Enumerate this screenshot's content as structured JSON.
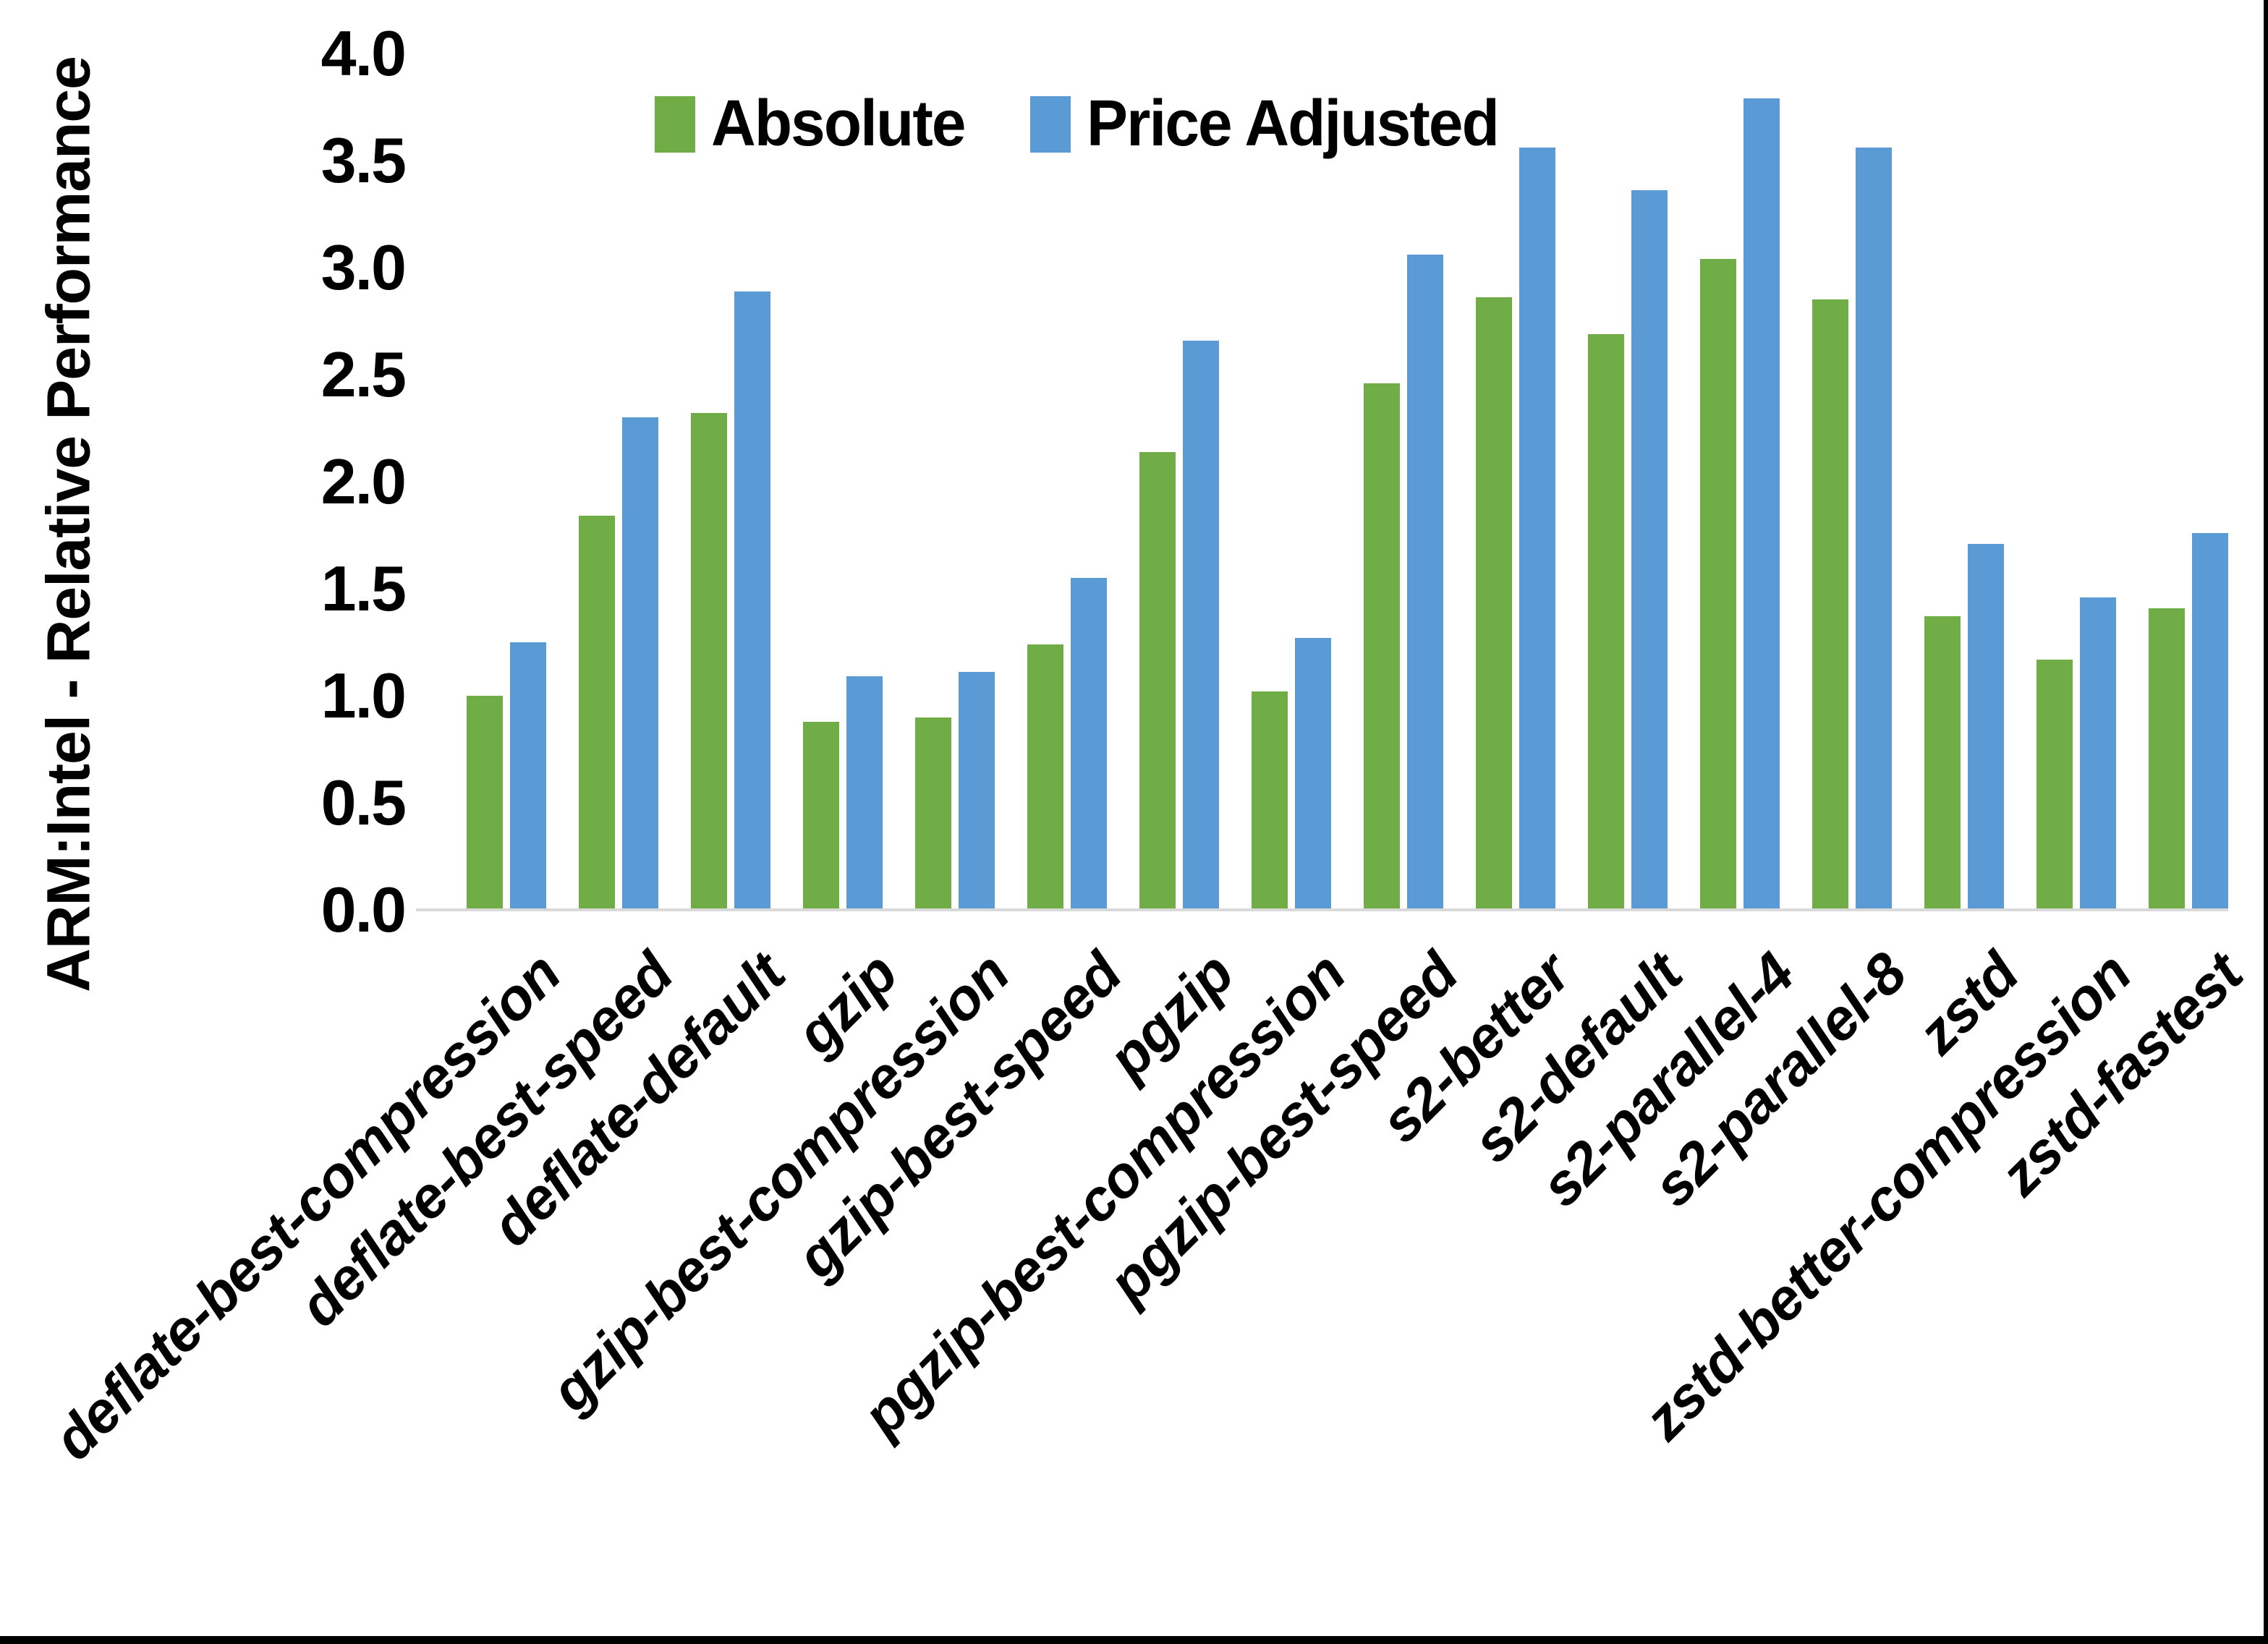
{
  "figure": {
    "background": "#ffffff",
    "border_color": "#000000"
  },
  "chart_data": {
    "type": "bar",
    "title": "",
    "xlabel": "",
    "ylabel": "ARM:Intel - Relative Performance",
    "ylim": [
      0.0,
      4.0
    ],
    "ytick_step": 0.5,
    "yticks": [
      "0.0",
      "0.5",
      "1.0",
      "1.5",
      "2.0",
      "2.5",
      "3.0",
      "3.5",
      "4.0"
    ],
    "grid": false,
    "legend_position": "top-center",
    "axis_line_color": "#d9d9d9",
    "categories": [
      "deflate-best-compression",
      "deflate-best-speed",
      "deflate-default",
      "gzip",
      "gzip-best-compression",
      "gzip-best-speed",
      "pgzip",
      "pgzip-best-compression",
      "pgzip-best-speed",
      "s2-better",
      "s2-default",
      "s2-parallel-4",
      "s2-parallel-8",
      "zstd",
      "zstd-better-compression",
      "zstd-fastest"
    ],
    "series": [
      {
        "name": "Absolute",
        "color": "#70AD47",
        "values": [
          1.0,
          1.84,
          2.32,
          0.88,
          0.9,
          1.24,
          2.14,
          1.02,
          2.46,
          2.86,
          2.69,
          3.04,
          2.85,
          1.37,
          1.17,
          1.41
        ]
      },
      {
        "name": "Price Adjusted",
        "color": "#5B9BD5",
        "values": [
          1.25,
          2.3,
          2.89,
          1.09,
          1.11,
          1.55,
          2.66,
          1.27,
          3.06,
          3.56,
          3.36,
          3.79,
          3.56,
          1.71,
          1.46,
          1.76
        ]
      }
    ]
  }
}
